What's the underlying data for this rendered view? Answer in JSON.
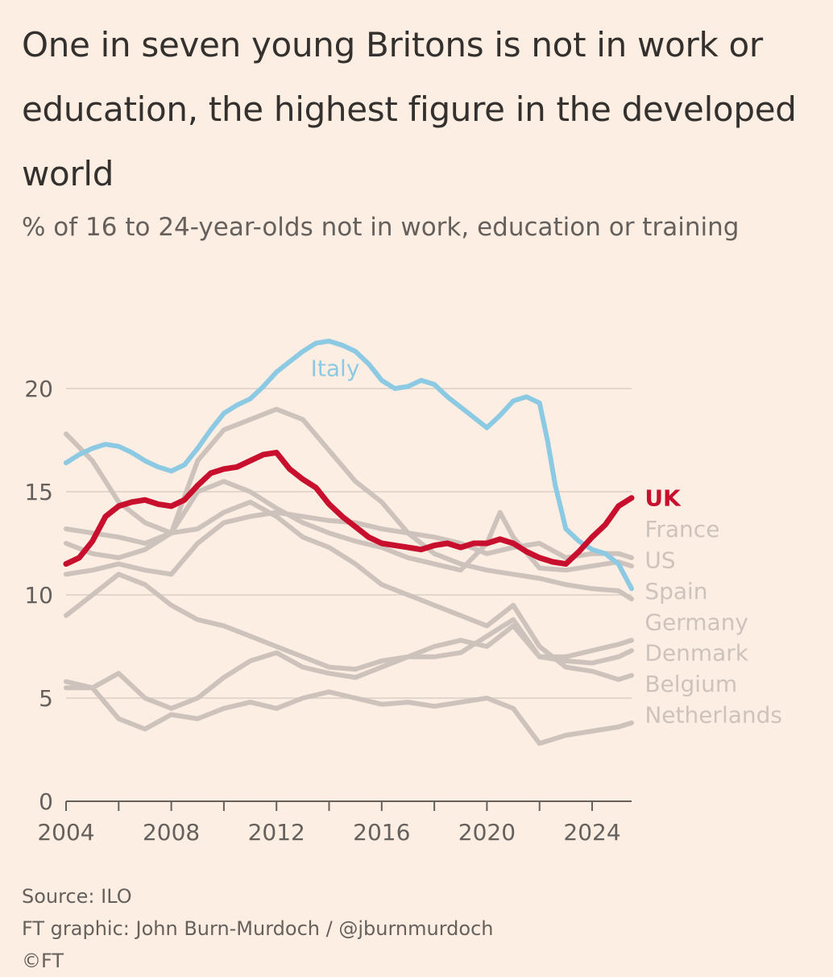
{
  "title": "One in seven young Britons is not in work or education, the highest figure in the developed world",
  "subtitle": "% of 16 to 24-year-olds not in work, education or training",
  "footer": {
    "source": "Source: ILO",
    "credit": "FT graphic: John Burn-Murdoch / @jburnmurdoch",
    "copyright": "©FT"
  },
  "colors": {
    "background": "#fdeee3",
    "italy": "#8cc9e3",
    "uk": "#c8102e",
    "others": "#cdc3bc",
    "grid": "#e3d7cd",
    "axis": "#66605c"
  },
  "chart_data": {
    "type": "line",
    "title": "One in seven young Britons is not in work or education, the highest figure in the developed world",
    "ylabel": "% of 16 to 24-year-olds not in work, education or training",
    "xlabel": "",
    "xlim": [
      2004,
      2025.5
    ],
    "ylim": [
      0,
      20
    ],
    "yticks": [
      0,
      5,
      10,
      15,
      20
    ],
    "xticks": [
      2004,
      2008,
      2012,
      2016,
      2020,
      2024
    ],
    "xticks_minor": [
      2004,
      2006,
      2008,
      2010,
      2012,
      2014,
      2016,
      2018,
      2020,
      2022,
      2024
    ],
    "series": [
      {
        "name": "Italy",
        "highlight": "italy",
        "label_x": 2013.3,
        "label_y": 21,
        "x": [
          2004,
          2004.5,
          2005,
          2005.5,
          2006,
          2006.5,
          2007,
          2007.5,
          2008,
          2008.5,
          2009,
          2009.5,
          2010,
          2010.5,
          2011,
          2011.5,
          2012,
          2012.5,
          2013,
          2013.5,
          2014,
          2014.5,
          2015,
          2015.5,
          2016,
          2016.5,
          2017,
          2017.5,
          2018,
          2018.5,
          2019,
          2019.5,
          2020,
          2020.5,
          2021,
          2021.5,
          2022,
          2022.3,
          2022.6,
          2023,
          2023.5,
          2024,
          2024.5,
          2025,
          2025.5
        ],
        "y": [
          16.4,
          16.8,
          17.1,
          17.3,
          17.2,
          16.9,
          16.5,
          16.2,
          16.0,
          16.3,
          17.1,
          18.0,
          18.8,
          19.2,
          19.5,
          20.1,
          20.8,
          21.3,
          21.8,
          22.2,
          22.3,
          22.1,
          21.8,
          21.2,
          20.4,
          20.0,
          20.1,
          20.4,
          20.2,
          19.6,
          19.1,
          18.6,
          18.1,
          18.7,
          19.4,
          19.6,
          19.3,
          17.5,
          15.3,
          13.2,
          12.6,
          12.2,
          12.0,
          11.5,
          10.3
        ]
      },
      {
        "name": "UK",
        "highlight": "uk",
        "label_x": 2026,
        "label_y": 14.7,
        "x": [
          2004,
          2004.5,
          2005,
          2005.5,
          2006,
          2006.5,
          2007,
          2007.5,
          2008,
          2008.5,
          2009,
          2009.5,
          2010,
          2010.5,
          2011,
          2011.5,
          2012,
          2012.5,
          2013,
          2013.5,
          2014,
          2014.5,
          2015,
          2015.5,
          2016,
          2016.5,
          2017,
          2017.5,
          2018,
          2018.5,
          2019,
          2019.5,
          2020,
          2020.5,
          2021,
          2021.5,
          2022,
          2022.5,
          2023,
          2023.5,
          2024,
          2024.5,
          2025,
          2025.5
        ],
        "y": [
          11.5,
          11.8,
          12.6,
          13.8,
          14.3,
          14.5,
          14.6,
          14.4,
          14.3,
          14.6,
          15.3,
          15.9,
          16.1,
          16.2,
          16.5,
          16.8,
          16.9,
          16.1,
          15.6,
          15.2,
          14.4,
          13.8,
          13.3,
          12.8,
          12.5,
          12.4,
          12.3,
          12.2,
          12.4,
          12.5,
          12.3,
          12.5,
          12.5,
          12.7,
          12.5,
          12.1,
          11.8,
          11.6,
          11.5,
          12.1,
          12.8,
          13.4,
          14.3,
          14.7
        ]
      },
      {
        "name": "France",
        "highlight": "others",
        "label_x": 2026,
        "label_y": 13.2,
        "x": [
          2004,
          2005,
          2006,
          2007,
          2008,
          2009,
          2010,
          2011,
          2012,
          2013,
          2014,
          2015,
          2016,
          2017,
          2018,
          2019,
          2020,
          2021,
          2022,
          2023,
          2024,
          2025,
          2025.5
        ],
        "y": [
          11.0,
          11.2,
          11.5,
          11.2,
          11.0,
          12.5,
          13.5,
          13.8,
          14.0,
          13.8,
          13.6,
          13.5,
          13.2,
          13.0,
          12.8,
          12.5,
          12.0,
          12.3,
          12.5,
          11.8,
          12.0,
          12.0,
          11.8
        ]
      },
      {
        "name": "US",
        "highlight": "others",
        "label_x": 2026,
        "label_y": 11.7,
        "x": [
          2004,
          2005,
          2006,
          2007,
          2008,
          2009,
          2010,
          2011,
          2012,
          2013,
          2014,
          2015,
          2016,
          2017,
          2018,
          2019,
          2020,
          2020.5,
          2021,
          2022,
          2023,
          2024,
          2025,
          2025.5
        ],
        "y": [
          13.2,
          13.0,
          12.8,
          12.5,
          13.0,
          15.0,
          15.5,
          15.0,
          14.2,
          13.5,
          13.0,
          12.6,
          12.3,
          11.8,
          11.5,
          11.2,
          12.5,
          14.0,
          12.8,
          11.3,
          11.2,
          11.4,
          11.6,
          11.4
        ]
      },
      {
        "name": "Spain",
        "highlight": "others",
        "label_x": 2026,
        "label_y": 10.2,
        "x": [
          2004,
          2005,
          2006,
          2007,
          2008,
          2009,
          2010,
          2011,
          2012,
          2013,
          2014,
          2015,
          2016,
          2017,
          2018,
          2019,
          2020,
          2021,
          2022,
          2023,
          2024,
          2025,
          2025.5
        ],
        "y": [
          12.5,
          12.0,
          11.8,
          12.2,
          13.0,
          16.5,
          18.0,
          18.5,
          19.0,
          18.5,
          17.0,
          15.5,
          14.5,
          13.0,
          12.0,
          11.5,
          11.2,
          11.0,
          10.8,
          10.5,
          10.3,
          10.2,
          9.8
        ]
      },
      {
        "name": "Germany",
        "highlight": "others",
        "label_x": 2026,
        "label_y": 8.7,
        "x": [
          2004,
          2005,
          2006,
          2007,
          2008,
          2009,
          2010,
          2011,
          2012,
          2013,
          2014,
          2015,
          2016,
          2017,
          2018,
          2019,
          2020,
          2021,
          2022,
          2023,
          2024,
          2025,
          2025.5
        ],
        "y": [
          9.0,
          10.0,
          11.0,
          10.5,
          9.5,
          8.8,
          8.5,
          8.0,
          7.5,
          7.0,
          6.5,
          6.4,
          6.8,
          7.0,
          7.0,
          7.2,
          8.0,
          8.8,
          7.0,
          7.0,
          7.3,
          7.6,
          7.8
        ]
      },
      {
        "name": "Denmark",
        "highlight": "others",
        "label_x": 2026,
        "label_y": 7.2,
        "x": [
          2004,
          2005,
          2006,
          2007,
          2008,
          2009,
          2010,
          2011,
          2012,
          2013,
          2014,
          2015,
          2016,
          2017,
          2018,
          2019,
          2020,
          2021,
          2022,
          2023,
          2024,
          2025,
          2025.5
        ],
        "y": [
          5.5,
          5.5,
          6.2,
          5.0,
          4.5,
          5.0,
          6.0,
          6.8,
          7.2,
          6.5,
          6.2,
          6.0,
          6.5,
          7.0,
          7.5,
          7.8,
          7.5,
          8.5,
          7.0,
          6.8,
          6.7,
          7.0,
          7.3
        ]
      },
      {
        "name": "Belgium",
        "highlight": "others",
        "label_x": 2026,
        "label_y": 5.7,
        "x": [
          2004,
          2005,
          2006,
          2007,
          2008,
          2009,
          2010,
          2011,
          2012,
          2013,
          2014,
          2015,
          2016,
          2017,
          2018,
          2019,
          2020,
          2021,
          2022,
          2023,
          2024,
          2025,
          2025.5
        ],
        "y": [
          17.8,
          16.5,
          14.5,
          13.5,
          13.0,
          13.2,
          14.0,
          14.5,
          13.8,
          12.8,
          12.3,
          11.5,
          10.5,
          10.0,
          9.5,
          9.0,
          8.5,
          9.5,
          7.5,
          6.5,
          6.3,
          5.9,
          6.1
        ]
      },
      {
        "name": "Netherlands",
        "highlight": "others",
        "label_x": 2026,
        "label_y": 4.2,
        "x": [
          2004,
          2005,
          2006,
          2007,
          2008,
          2009,
          2010,
          2011,
          2012,
          2013,
          2014,
          2015,
          2016,
          2017,
          2018,
          2019,
          2020,
          2021,
          2022,
          2023,
          2024,
          2025,
          2025.5
        ],
        "y": [
          5.8,
          5.5,
          4.0,
          3.5,
          4.2,
          4.0,
          4.5,
          4.8,
          4.5,
          5.0,
          5.3,
          5.0,
          4.7,
          4.8,
          4.6,
          4.8,
          5.0,
          4.5,
          2.8,
          3.2,
          3.4,
          3.6,
          3.8
        ]
      }
    ]
  }
}
